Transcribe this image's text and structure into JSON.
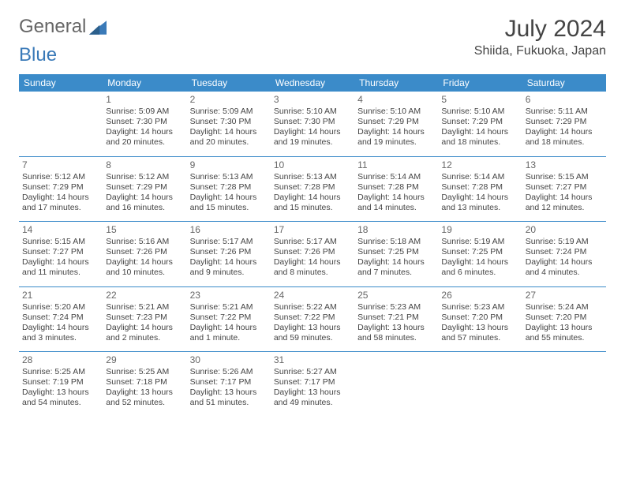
{
  "brand": {
    "part1": "General",
    "part2": "Blue"
  },
  "title": "July 2024",
  "location": "Shiida, Fukuoka, Japan",
  "colors": {
    "header_bg": "#3b8bc9",
    "header_text": "#ffffff",
    "rule": "#3b8bc9",
    "text": "#444444",
    "brand_blue": "#3a7ab8",
    "brand_gray": "#666666",
    "background": "#ffffff"
  },
  "weekday_labels": [
    "Sunday",
    "Monday",
    "Tuesday",
    "Wednesday",
    "Thursday",
    "Friday",
    "Saturday"
  ],
  "leading_blanks": 1,
  "days": [
    {
      "n": 1,
      "sunrise": "5:09 AM",
      "sunset": "7:30 PM",
      "daylight": "14 hours and 20 minutes."
    },
    {
      "n": 2,
      "sunrise": "5:09 AM",
      "sunset": "7:30 PM",
      "daylight": "14 hours and 20 minutes."
    },
    {
      "n": 3,
      "sunrise": "5:10 AM",
      "sunset": "7:30 PM",
      "daylight": "14 hours and 19 minutes."
    },
    {
      "n": 4,
      "sunrise": "5:10 AM",
      "sunset": "7:29 PM",
      "daylight": "14 hours and 19 minutes."
    },
    {
      "n": 5,
      "sunrise": "5:10 AM",
      "sunset": "7:29 PM",
      "daylight": "14 hours and 18 minutes."
    },
    {
      "n": 6,
      "sunrise": "5:11 AM",
      "sunset": "7:29 PM",
      "daylight": "14 hours and 18 minutes."
    },
    {
      "n": 7,
      "sunrise": "5:12 AM",
      "sunset": "7:29 PM",
      "daylight": "14 hours and 17 minutes."
    },
    {
      "n": 8,
      "sunrise": "5:12 AM",
      "sunset": "7:29 PM",
      "daylight": "14 hours and 16 minutes."
    },
    {
      "n": 9,
      "sunrise": "5:13 AM",
      "sunset": "7:28 PM",
      "daylight": "14 hours and 15 minutes."
    },
    {
      "n": 10,
      "sunrise": "5:13 AM",
      "sunset": "7:28 PM",
      "daylight": "14 hours and 15 minutes."
    },
    {
      "n": 11,
      "sunrise": "5:14 AM",
      "sunset": "7:28 PM",
      "daylight": "14 hours and 14 minutes."
    },
    {
      "n": 12,
      "sunrise": "5:14 AM",
      "sunset": "7:28 PM",
      "daylight": "14 hours and 13 minutes."
    },
    {
      "n": 13,
      "sunrise": "5:15 AM",
      "sunset": "7:27 PM",
      "daylight": "14 hours and 12 minutes."
    },
    {
      "n": 14,
      "sunrise": "5:15 AM",
      "sunset": "7:27 PM",
      "daylight": "14 hours and 11 minutes."
    },
    {
      "n": 15,
      "sunrise": "5:16 AM",
      "sunset": "7:26 PM",
      "daylight": "14 hours and 10 minutes."
    },
    {
      "n": 16,
      "sunrise": "5:17 AM",
      "sunset": "7:26 PM",
      "daylight": "14 hours and 9 minutes."
    },
    {
      "n": 17,
      "sunrise": "5:17 AM",
      "sunset": "7:26 PM",
      "daylight": "14 hours and 8 minutes."
    },
    {
      "n": 18,
      "sunrise": "5:18 AM",
      "sunset": "7:25 PM",
      "daylight": "14 hours and 7 minutes."
    },
    {
      "n": 19,
      "sunrise": "5:19 AM",
      "sunset": "7:25 PM",
      "daylight": "14 hours and 6 minutes."
    },
    {
      "n": 20,
      "sunrise": "5:19 AM",
      "sunset": "7:24 PM",
      "daylight": "14 hours and 4 minutes."
    },
    {
      "n": 21,
      "sunrise": "5:20 AM",
      "sunset": "7:24 PM",
      "daylight": "14 hours and 3 minutes."
    },
    {
      "n": 22,
      "sunrise": "5:21 AM",
      "sunset": "7:23 PM",
      "daylight": "14 hours and 2 minutes."
    },
    {
      "n": 23,
      "sunrise": "5:21 AM",
      "sunset": "7:22 PM",
      "daylight": "14 hours and 1 minute."
    },
    {
      "n": 24,
      "sunrise": "5:22 AM",
      "sunset": "7:22 PM",
      "daylight": "13 hours and 59 minutes."
    },
    {
      "n": 25,
      "sunrise": "5:23 AM",
      "sunset": "7:21 PM",
      "daylight": "13 hours and 58 minutes."
    },
    {
      "n": 26,
      "sunrise": "5:23 AM",
      "sunset": "7:20 PM",
      "daylight": "13 hours and 57 minutes."
    },
    {
      "n": 27,
      "sunrise": "5:24 AM",
      "sunset": "7:20 PM",
      "daylight": "13 hours and 55 minutes."
    },
    {
      "n": 28,
      "sunrise": "5:25 AM",
      "sunset": "7:19 PM",
      "daylight": "13 hours and 54 minutes."
    },
    {
      "n": 29,
      "sunrise": "5:25 AM",
      "sunset": "7:18 PM",
      "daylight": "13 hours and 52 minutes."
    },
    {
      "n": 30,
      "sunrise": "5:26 AM",
      "sunset": "7:17 PM",
      "daylight": "13 hours and 51 minutes."
    },
    {
      "n": 31,
      "sunrise": "5:27 AM",
      "sunset": "7:17 PM",
      "daylight": "13 hours and 49 minutes."
    }
  ],
  "labels": {
    "sunrise_prefix": "Sunrise: ",
    "sunset_prefix": "Sunset: ",
    "daylight_prefix": "Daylight: "
  }
}
